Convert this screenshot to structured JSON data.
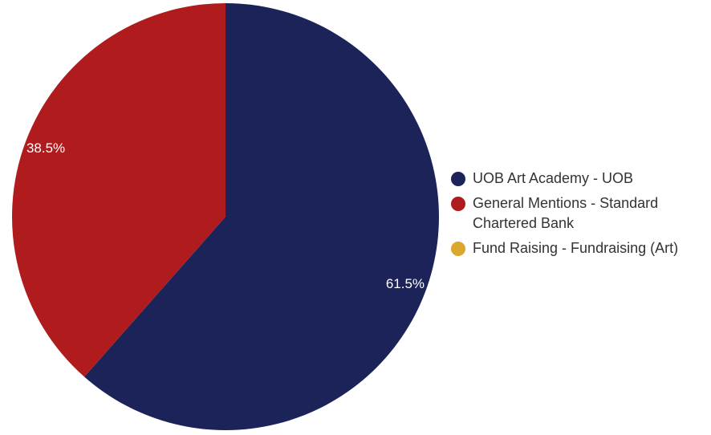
{
  "chart_data": {
    "type": "pie",
    "title": "",
    "legend_position": "right",
    "slices": [
      {
        "label": "UOB Art Academy - UOB",
        "value": 61.5,
        "display": "61.5%",
        "color": "#1c2359"
      },
      {
        "label": "General Mentions - Standard Chartered Bank",
        "value": 38.5,
        "display": "38.5%",
        "color": "#b01c1e"
      },
      {
        "label": "Fund Raising - Fundraising (Art)",
        "value": 0,
        "display": "",
        "color": "#dba72c"
      }
    ]
  }
}
